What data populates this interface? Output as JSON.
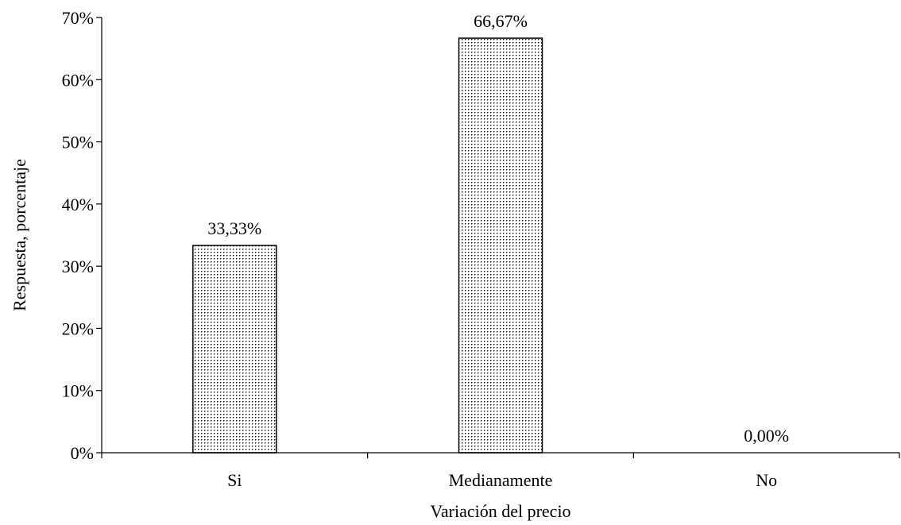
{
  "chart_data": {
    "type": "bar",
    "categories": [
      "Si",
      "Medianamente",
      "No"
    ],
    "values": [
      33.33,
      66.67,
      0.0
    ],
    "data_labels": [
      "33,33%",
      "66,67%",
      "0,00%"
    ],
    "y_ticks": [
      0,
      10,
      20,
      30,
      40,
      50,
      60,
      70
    ],
    "y_tick_labels": [
      "0%",
      "10%",
      "20%",
      "30%",
      "40%",
      "50%",
      "60%",
      "70%"
    ],
    "ylim": [
      0,
      70
    ],
    "xlabel": "Variación del precio",
    "ylabel": "Respuesta, porcentaje",
    "grid": false,
    "legend": "none",
    "bar_fill": "dotted pattern",
    "colors": {
      "bar_stroke": "#000000",
      "dots": "#000000",
      "background": "#ffffff",
      "axis": "#000000"
    }
  }
}
